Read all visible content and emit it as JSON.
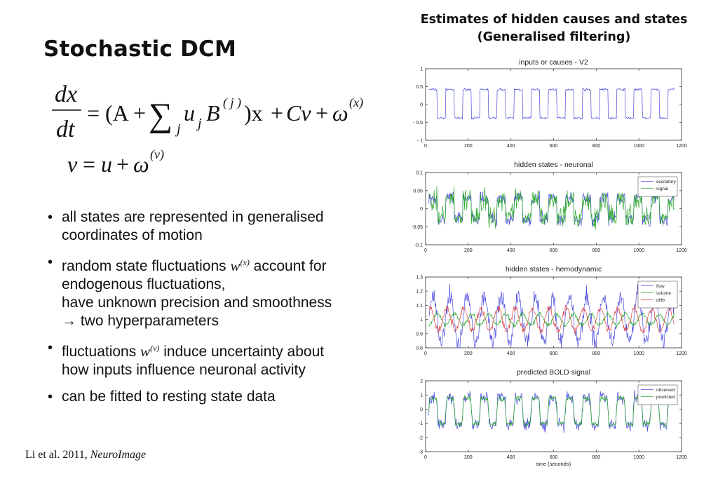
{
  "slide": {
    "title": "Stochastic DCM",
    "equation": {
      "line1": {
        "lhs_num": "dx",
        "lhs_den": "dt",
        "eq": "=",
        "open": "(A",
        "plus1": "+",
        "sum": "∑",
        "sum_sub": "j",
        "u": "u",
        "u_sub": "j",
        "B": "B",
        "B_sup": "( j )",
        "close": ")x",
        "plus2": "+",
        "Cv": "Cv",
        "plus3": "+",
        "omega": "ω",
        "omega_sup": "(x)"
      },
      "line2": {
        "v": "v",
        "eq": "=",
        "u": "u",
        "plus": "+",
        "omega": "ω",
        "omega_sup": "(v)"
      }
    },
    "bullets": [
      {
        "text": "all states are represented in generalised coordinates of motion"
      },
      {
        "pre": "random state fluctuations",
        "w": "w",
        "w_sup": "(x)",
        "post": "account for",
        "line2": "endogenous fluctuations,",
        "line3": "have unknown precision and smoothness",
        "line4": "→ two hyperparameters"
      },
      {
        "pre": "fluctuations",
        "w": "w",
        "w_sup": "(v)",
        "post": "induce uncertainty about",
        "line2": "how inputs influence neuronal activity"
      },
      {
        "text": "can be fitted to resting state data"
      }
    ],
    "citation": {
      "authors": "Li et al. 2011,",
      "journal": "NeuroImage"
    },
    "figure_title_line1": "Estimates of hidden causes and states",
    "figure_title_line2": "(Generalised filtering)"
  },
  "chart_data": [
    {
      "type": "line",
      "title": "inputs or causes - V2",
      "xlim": [
        0,
        1200
      ],
      "ylim": [
        -1,
        1
      ],
      "xticks": [
        0,
        200,
        400,
        600,
        800,
        1000,
        1200
      ],
      "yticks": [
        -1,
        -0.5,
        0,
        0.5,
        1
      ],
      "ytick_labels": [
        "- 1",
        "- 0.5",
        "0",
        "0.5",
        "1"
      ],
      "pattern": {
        "kind": "square",
        "period": 80,
        "high": 0.42,
        "low": -0.38,
        "x_start": 15,
        "x_end": 1165,
        "noise": 0.03
      },
      "series": [
        {
          "color": "#4a4ae0"
        }
      ],
      "legend": []
    },
    {
      "type": "line",
      "title": "hidden states - neuronal",
      "xlim": [
        0,
        1200
      ],
      "ylim": [
        -0.1,
        0.1
      ],
      "xticks": [
        0,
        200,
        400,
        600,
        800,
        1000,
        1200
      ],
      "yticks": [
        -0.1,
        -0.05,
        0,
        0.05,
        0.1
      ],
      "ytick_labels": [
        "-0.1",
        "-0.05",
        "0",
        "0.05",
        "0.1"
      ],
      "pattern": {
        "kind": "neuronal",
        "x_start": 15,
        "x_end": 1165
      },
      "series": [
        {
          "name": "excitatory",
          "color": "#4a4ae0"
        },
        {
          "name": "signal",
          "color": "#2aa82a"
        }
      ],
      "legend": [
        "excitatory",
        "signal"
      ]
    },
    {
      "type": "line",
      "title": "hidden states - hemodynamic",
      "xlim": [
        0,
        1200
      ],
      "ylim": [
        0.8,
        1.3
      ],
      "xticks": [
        0,
        200,
        400,
        600,
        800,
        1000,
        1200
      ],
      "yticks": [
        0.8,
        0.9,
        1,
        1.1,
        1.2,
        1.3
      ],
      "ytick_labels": [
        "0.8",
        "0.9",
        "1",
        "1.1",
        "1.2",
        "1.3"
      ],
      "pattern": {
        "kind": "hemodynamic",
        "x_start": 15,
        "x_end": 1165
      },
      "series": [
        {
          "name": "flow",
          "color": "#4a4ae0"
        },
        {
          "name": "volume",
          "color": "#2aa82a"
        },
        {
          "name": "dHb",
          "color": "#e04040"
        }
      ],
      "legend": [
        "flow",
        "volume",
        "dHb"
      ]
    },
    {
      "type": "line",
      "title": "predicted BOLD signal",
      "xlabel": "time (seconds)",
      "xlim": [
        0,
        1200
      ],
      "ylim": [
        -3,
        2
      ],
      "xticks": [
        0,
        200,
        400,
        600,
        800,
        1000,
        1200
      ],
      "yticks": [
        -3,
        -2,
        -1,
        0,
        1,
        2
      ],
      "ytick_labels": [
        "-3",
        "-2",
        "-1",
        "0",
        "1",
        "2"
      ],
      "pattern": {
        "kind": "bold",
        "x_start": 15,
        "x_end": 1165
      },
      "series": [
        {
          "name": "observed",
          "color": "#4a4ae0"
        },
        {
          "name": "predicted",
          "color": "#2aa82a"
        }
      ],
      "legend": [
        "observed",
        "predicted"
      ]
    }
  ]
}
